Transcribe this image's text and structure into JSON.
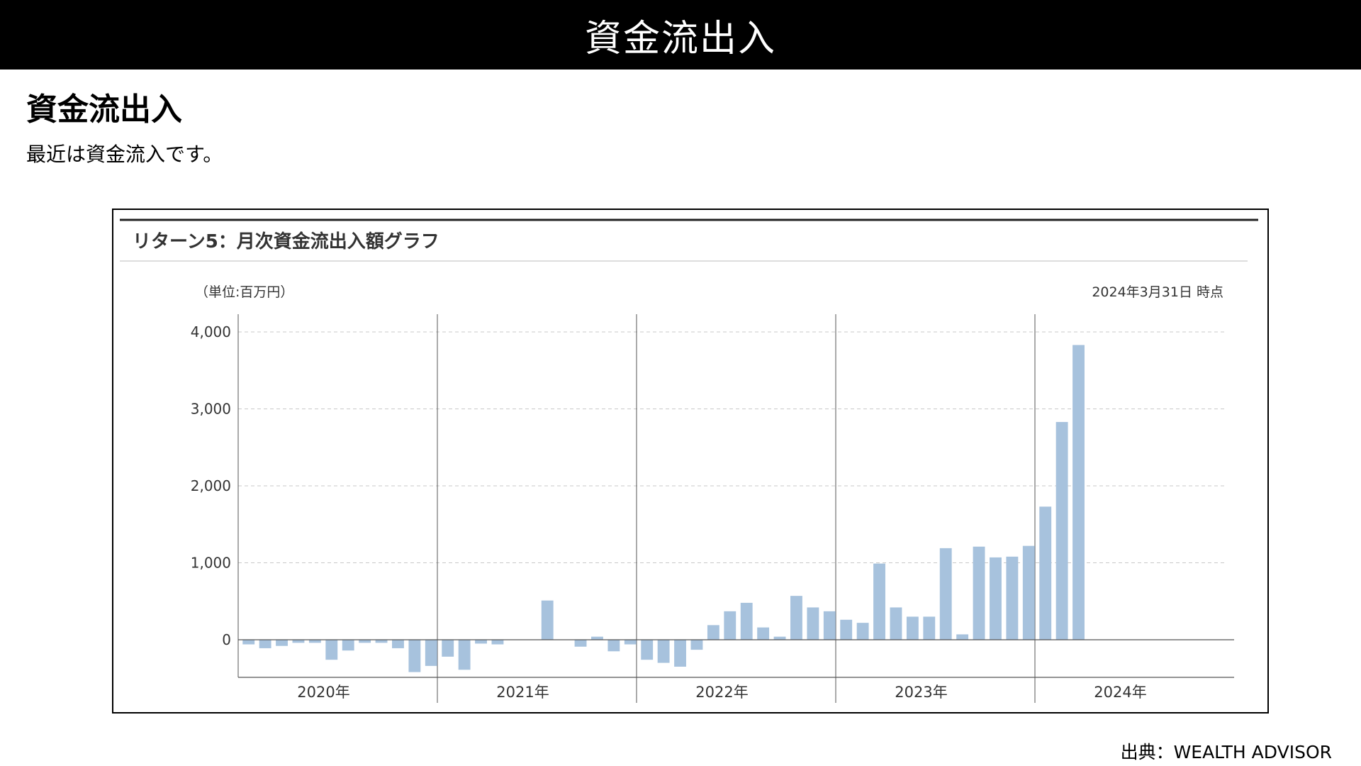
{
  "banner": {
    "title": "資金流出入"
  },
  "section": {
    "title": "資金流出入",
    "description": "最近は資金流入です。"
  },
  "source": "出典：WEALTH ADVISOR",
  "colors": {
    "bar": "#a7c2dd",
    "banner_bg": "#000000"
  },
  "chart_data": {
    "type": "bar",
    "title": "リターン5：月次資金流出入額グラフ",
    "unit_label": "（単位:百万円）",
    "as_of": "2024年3月31日 時点",
    "ylim": [
      -450,
      4000
    ],
    "yticks": [
      0,
      1000,
      2000,
      3000,
      4000
    ],
    "ytick_labels": [
      "0",
      "1,000",
      "2,000",
      "3,000",
      "4,000"
    ],
    "grid": "dashed-horizontal",
    "years": [
      "2020年",
      "2021年",
      "2022年",
      "2023年",
      "2024年"
    ],
    "series": [
      {
        "values": [
          -60,
          -110,
          -80,
          -40,
          -40,
          -260,
          -140,
          -40,
          -40,
          -110,
          -420,
          -340,
          -220,
          -390,
          -50,
          -60,
          0,
          0,
          510,
          0,
          -90,
          40,
          -150,
          -60,
          -260,
          -300,
          -350,
          -130,
          190,
          370,
          480,
          160,
          40,
          570,
          420,
          370,
          260,
          220,
          990,
          420,
          300,
          300,
          1190,
          70,
          1210,
          1070,
          1080,
          1220,
          1730,
          2830,
          3830
        ]
      }
    ]
  }
}
